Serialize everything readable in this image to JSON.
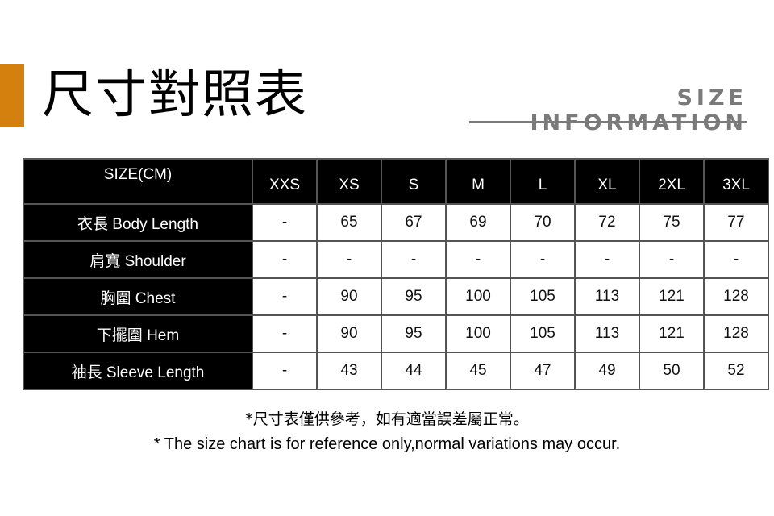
{
  "header": {
    "title": "尺寸對照表",
    "subtitle": "SIZE INFORMATION",
    "accent_color": "#d4800f"
  },
  "table": {
    "corner": "SIZE(CM)",
    "sizes": [
      "XXS",
      "XS",
      "S",
      "M",
      "L",
      "XL",
      "2XL",
      "3XL"
    ],
    "rows": [
      {
        "label": "衣長 Body Length",
        "values": [
          "-",
          "65",
          "67",
          "69",
          "70",
          "72",
          "75",
          "77"
        ]
      },
      {
        "label": "肩寬 Shoulder",
        "values": [
          "-",
          "-",
          "-",
          "-",
          "-",
          "-",
          "-",
          "-"
        ]
      },
      {
        "label": "胸圍 Chest",
        "values": [
          "-",
          "90",
          "95",
          "100",
          "105",
          "113",
          "121",
          "128"
        ]
      },
      {
        "label": "下擺圍 Hem",
        "values": [
          "-",
          "90",
          "95",
          "100",
          "105",
          "113",
          "121",
          "128"
        ]
      },
      {
        "label": "袖長 Sleeve Length",
        "values": [
          "-",
          "43",
          "44",
          "45",
          "47",
          "49",
          "50",
          "52"
        ]
      }
    ]
  },
  "notes": {
    "zh": "*尺寸表僅供參考，如有適當誤差屬正常。",
    "en": "* The size chart is for reference only,normal variations may occur."
  }
}
